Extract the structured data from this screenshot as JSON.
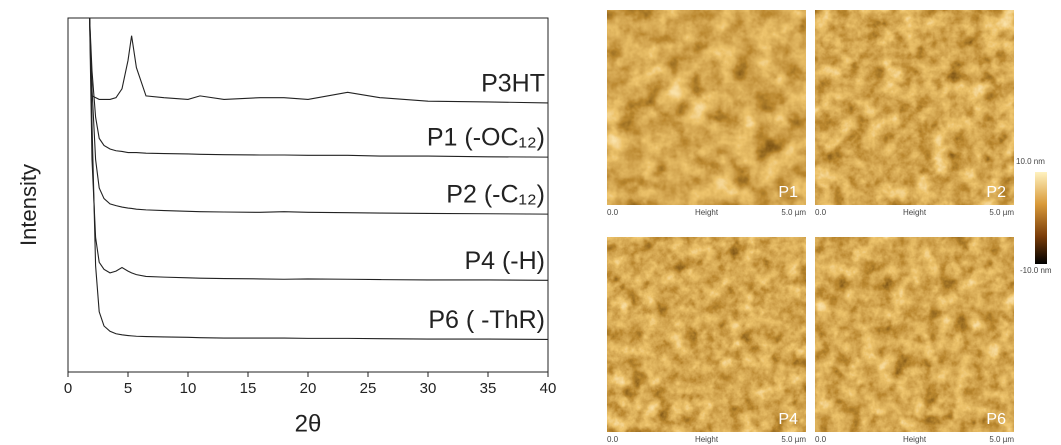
{
  "chart_data": {
    "type": "line",
    "xlabel": "2θ",
    "ylabel": "Intensity",
    "x": [
      1.6,
      1.8,
      2,
      2.3,
      2.6,
      3,
      3.5,
      4,
      4.5,
      5,
      5.3,
      5.7,
      6.5,
      8,
      10,
      11,
      13,
      16,
      18,
      20,
      23.3,
      26,
      30,
      35,
      40
    ],
    "series": [
      {
        "name": "P3HT",
        "color": "#222222",
        "values": [
          100,
          100,
          78,
          77.5,
          77,
          77,
          77,
          77.5,
          80,
          88,
          95,
          86,
          78,
          77.5,
          77,
          78,
          77,
          77.5,
          77.5,
          77,
          79,
          77.5,
          76.5,
          76.3,
          76
        ]
      },
      {
        "name": "P1 (-OC₁₂)",
        "color": "#222222",
        "values": [
          100,
          100,
          85,
          72,
          66,
          64,
          63,
          62.5,
          62.3,
          62,
          62,
          62,
          61.8,
          61.7,
          61.6,
          61.5,
          61.4,
          61.3,
          61.3,
          61.2,
          61.2,
          61,
          61,
          60.8,
          60.7
        ]
      },
      {
        "name": "P2 (-C₁₂)",
        "color": "#222222",
        "values": [
          100,
          100,
          80,
          60,
          52,
          49,
          47.5,
          47,
          46.6,
          46.3,
          46.2,
          46,
          45.8,
          45.6,
          45.4,
          45.3,
          45.2,
          45.1,
          45.3,
          45.1,
          45,
          44.9,
          44.8,
          44.7,
          44.6
        ]
      },
      {
        "name": "P4 (-H)",
        "color": "#222222",
        "values": [
          100,
          100,
          60,
          38,
          31,
          29,
          28,
          28.5,
          29.5,
          28.5,
          28,
          27.5,
          27,
          26.8,
          26.6,
          26.5,
          26.4,
          26.3,
          26.2,
          26.3,
          26.2,
          26.1,
          26,
          26,
          25.9
        ]
      },
      {
        "name": "P6 ( -ThR)",
        "color": "#222222",
        "values": [
          100,
          100,
          70,
          30,
          17,
          13,
          11.5,
          10.8,
          10.5,
          10.3,
          10.2,
          10.1,
          10,
          9.9,
          9.8,
          9.7,
          9.6,
          9.6,
          9.6,
          9.5,
          9.5,
          9.4,
          9.3,
          9.3,
          9.2
        ]
      }
    ],
    "xlim": [
      0,
      40
    ],
    "xticks": [
      0,
      5,
      10,
      15,
      20,
      25,
      30,
      35,
      40
    ],
    "ylim": [
      0,
      100
    ]
  },
  "afm": {
    "panels": [
      {
        "label": "P1",
        "start": "0.0",
        "channel": "Height",
        "end": "5.0 µm"
      },
      {
        "label": "P2",
        "start": "0.0",
        "channel": "Height",
        "end": "5.0 µm"
      },
      {
        "label": "P4",
        "start": "0.0",
        "channel": "Height",
        "end": "5.0 µm"
      },
      {
        "label": "P6",
        "start": "0.0",
        "channel": "Height",
        "end": "5.0 µm"
      }
    ],
    "colorbar": {
      "max": "10.0 nm",
      "min": "-10.0 nm"
    }
  }
}
